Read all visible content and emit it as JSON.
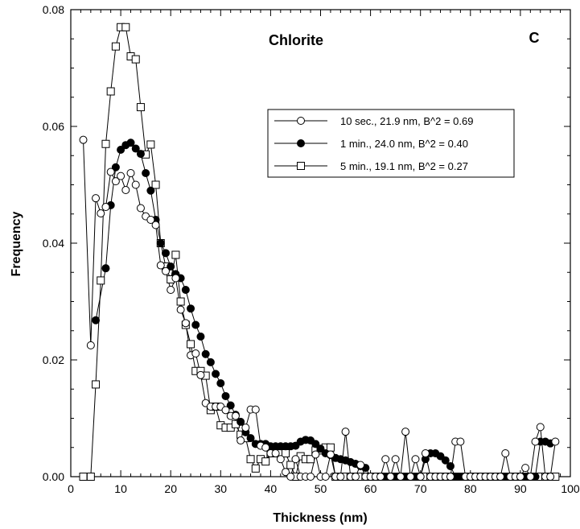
{
  "chart_data": {
    "type": "line",
    "title": "Chlorite",
    "panel_label": "C",
    "xlabel": "Thickness  (nm)",
    "ylabel": "Frequency",
    "xlim": [
      0,
      100
    ],
    "ylim": [
      0,
      0.08
    ],
    "xticks": [
      0,
      10,
      20,
      30,
      40,
      50,
      60,
      70,
      80,
      90,
      100
    ],
    "xtick_labels": [
      "0",
      "10",
      "20",
      "30",
      "40",
      "50",
      "60",
      "70",
      "80",
      "90",
      "100"
    ],
    "yticks": [
      0,
      0.02,
      0.04,
      0.06,
      0.08
    ],
    "ytick_labels": [
      "0.00",
      "0.02",
      "0.04",
      "0.06",
      "0.08"
    ],
    "grid": false,
    "legend_position": "top-right",
    "series": [
      {
        "name": "10 sec., 21.9 nm, B^2 = 0.69",
        "marker": "open-circle",
        "x": [
          2.5,
          4,
          5,
          6,
          7,
          8,
          9,
          10,
          11,
          12,
          13,
          14,
          15,
          16,
          17,
          18,
          19,
          20,
          21,
          22,
          23,
          24,
          25,
          26,
          27,
          28,
          29,
          30,
          31,
          32,
          33,
          34,
          35,
          36,
          37,
          38,
          39,
          40,
          41,
          42,
          43,
          44,
          45,
          46,
          47,
          48,
          49,
          50,
          51,
          52,
          53,
          54,
          55,
          56,
          57,
          58,
          59,
          60,
          61,
          62,
          63,
          64,
          65,
          66,
          67,
          68,
          69,
          70,
          71,
          72,
          73,
          74,
          75,
          76,
          77,
          78,
          79,
          80,
          81,
          82,
          83,
          84,
          85,
          86,
          87,
          88,
          89,
          90,
          91,
          92,
          93,
          94,
          95,
          96,
          97
        ],
        "y": [
          0.0577,
          0.0225,
          0.0477,
          0.0451,
          0.0462,
          0.0522,
          0.0506,
          0.0515,
          0.0491,
          0.052,
          0.05,
          0.046,
          0.0446,
          0.044,
          0.0431,
          0.0362,
          0.0352,
          0.032,
          0.034,
          0.0286,
          0.0263,
          0.0208,
          0.0211,
          0.0174,
          0.0126,
          0.012,
          0.012,
          0.012,
          0.0114,
          0.0104,
          0.0104,
          0.0062,
          0.0084,
          0.0115,
          0.0115,
          0.0053,
          0.005,
          0.004,
          0.004,
          0.003,
          0.0008,
          0.0,
          0.003,
          0.0,
          0.0,
          0.0,
          0.0038,
          0.0,
          0.0,
          0.0038,
          0.0,
          0.0,
          0.0077,
          0.0,
          0.0,
          0.002,
          0.0,
          0.0,
          0.0,
          0.0,
          0.003,
          0.0,
          0.003,
          0.0,
          0.0077,
          0.0,
          0.003,
          0.0,
          0.004,
          0.0,
          0.0,
          0.0,
          0.0,
          0.0,
          0.006,
          0.006,
          0.0,
          0.0,
          0.0,
          0.0,
          0.0,
          0.0,
          0.0,
          0.0,
          0.004,
          0.0,
          0.0,
          0.0,
          0.0015,
          0.0,
          0.006,
          0.0085,
          0.0,
          0.0,
          0.006
        ]
      },
      {
        "name": "1 min., 24.0 nm, B^2 = 0.40",
        "marker": "filled-circle",
        "x": [
          5,
          7,
          8,
          9,
          10,
          11,
          12,
          13,
          14,
          15,
          16,
          17,
          18,
          19,
          20,
          21,
          22,
          23,
          24,
          25,
          26,
          27,
          28,
          29,
          30,
          31,
          32,
          33,
          34,
          35,
          36,
          37,
          38,
          39,
          40,
          41,
          42,
          43,
          44,
          45,
          46,
          47,
          48,
          49,
          50,
          51,
          52,
          53,
          54,
          55,
          56,
          57,
          58,
          59,
          60,
          61,
          62,
          63,
          64,
          65,
          66,
          67,
          68,
          69,
          70,
          71,
          72,
          73,
          74,
          75,
          76,
          77,
          78,
          79,
          80,
          81,
          82,
          83,
          84,
          85,
          86,
          87,
          88,
          89,
          90,
          91,
          92,
          93,
          94,
          95,
          96
        ],
        "y": [
          0.0268,
          0.0357,
          0.0465,
          0.053,
          0.056,
          0.0568,
          0.0572,
          0.0562,
          0.0553,
          0.052,
          0.049,
          0.044,
          0.04,
          0.0383,
          0.036,
          0.0347,
          0.034,
          0.032,
          0.0288,
          0.026,
          0.024,
          0.021,
          0.0196,
          0.0176,
          0.016,
          0.0138,
          0.0122,
          0.0106,
          0.0094,
          0.0076,
          0.0066,
          0.0056,
          0.0056,
          0.0056,
          0.0052,
          0.0052,
          0.0052,
          0.0052,
          0.0052,
          0.0053,
          0.006,
          0.0063,
          0.0062,
          0.0056,
          0.0048,
          0.004,
          0.0037,
          0.0032,
          0.003,
          0.0028,
          0.0025,
          0.0022,
          0.0018,
          0.0015,
          0.0,
          0.0,
          0.0,
          0.0,
          0.0,
          0.0,
          0.0,
          0.0,
          0.0,
          0.0,
          0.0,
          0.003,
          0.004,
          0.004,
          0.0035,
          0.0028,
          0.0018,
          0.0,
          0.0,
          0.0,
          0.0,
          0.0,
          0.0,
          0.0,
          0.0,
          0.0,
          0.0,
          0.0,
          0.0,
          0.0,
          0.0,
          0.0,
          0.0,
          0.0,
          0.006,
          0.006,
          0.0057
        ]
      },
      {
        "name": "5 min., 19.1 nm, B^2 = 0.27",
        "marker": "open-square",
        "x": [
          2.5,
          4,
          5,
          6,
          7,
          8,
          9,
          10,
          11,
          12,
          13,
          14,
          15,
          16,
          17,
          18,
          19,
          20,
          21,
          22,
          23,
          24,
          25,
          26,
          27,
          28,
          29,
          30,
          31,
          32,
          33,
          34,
          35,
          36,
          37,
          38,
          39,
          40,
          41,
          42,
          43,
          44,
          45,
          46,
          47,
          48,
          49,
          50,
          51,
          52,
          53,
          54,
          55,
          56,
          57,
          58,
          59,
          60,
          61,
          62,
          63,
          64,
          65,
          66,
          67,
          68,
          69,
          70,
          71,
          72,
          73,
          74,
          75,
          76,
          77,
          78,
          79,
          80,
          81,
          82,
          83,
          84,
          85,
          86,
          87,
          88,
          89,
          90,
          91,
          92,
          93,
          94,
          95,
          96,
          97
        ],
        "y": [
          0.0,
          0.0,
          0.0158,
          0.0336,
          0.057,
          0.066,
          0.0737,
          0.077,
          0.077,
          0.072,
          0.0715,
          0.0633,
          0.0552,
          0.0569,
          0.05,
          0.04,
          0.036,
          0.0338,
          0.038,
          0.03,
          0.026,
          0.0227,
          0.0181,
          0.0181,
          0.0173,
          0.0114,
          0.012,
          0.0088,
          0.0084,
          0.0084,
          0.009,
          0.0072,
          0.0066,
          0.003,
          0.0014,
          0.003,
          0.0026,
          0.004,
          0.004,
          0.004,
          0.004,
          0.002,
          0.0,
          0.0035,
          0.003,
          0.003,
          0.0045,
          0.0045,
          0.005,
          0.005,
          0.0,
          0.0,
          0.0,
          0.0,
          0.0,
          0.0,
          0.0,
          0.0,
          0.0,
          0.0,
          0.0,
          0.0,
          0.0,
          0.0,
          0.0,
          0.0,
          0.0,
          0.0,
          0.0,
          0.0,
          0.0,
          0.0,
          0.0,
          0.0,
          0.0,
          0.0,
          0.0,
          0.0,
          0.0,
          0.0,
          0.0,
          0.0,
          0.0,
          0.0,
          0.0,
          0.0,
          0.0,
          0.0,
          0.0,
          0.0,
          0.0,
          0.0,
          0.0,
          0.0,
          0.0
        ]
      }
    ]
  }
}
